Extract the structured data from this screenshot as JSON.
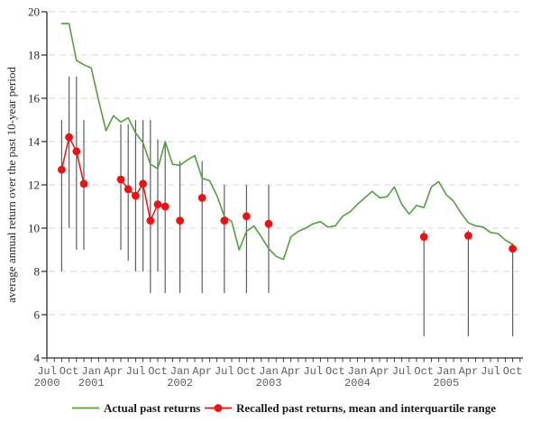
{
  "figure": {
    "title": "",
    "background": "#ffffff"
  },
  "chart_data": {
    "type": "line",
    "title": "",
    "xlabel": "",
    "ylabel": "average annual return over the past 10-year period",
    "ylim": [
      4,
      20
    ],
    "yticks": [
      4,
      6,
      8,
      10,
      12,
      14,
      16,
      18,
      20
    ],
    "grid": "horizontal dashed gridlines at every y tick from 6 to 20",
    "legend_position": "bottom-center",
    "colors": {
      "actual": "#52a03e",
      "recalled": "#ee1111",
      "error_bar": "#5f5f5f",
      "grid": "#d6d6d6",
      "axis": "#2b2b2b"
    },
    "x_axis": {
      "unit": "month",
      "first_tick": "2000-07",
      "last_tick": "2005-10",
      "minor_ticks": "every month"
    },
    "x_quarter_ticks": [
      {
        "m": 0,
        "label": "Jul"
      },
      {
        "m": 3,
        "label": "Oct"
      },
      {
        "m": 6,
        "label": "Jan"
      },
      {
        "m": 9,
        "label": "Apr"
      },
      {
        "m": 12,
        "label": "Jul"
      },
      {
        "m": 15,
        "label": "Oct"
      },
      {
        "m": 18,
        "label": "Jan"
      },
      {
        "m": 21,
        "label": "Apr"
      },
      {
        "m": 24,
        "label": "Jul"
      },
      {
        "m": 27,
        "label": "Oct"
      },
      {
        "m": 30,
        "label": "Jan"
      },
      {
        "m": 33,
        "label": "Apr"
      },
      {
        "m": 36,
        "label": "Jul"
      },
      {
        "m": 39,
        "label": "Oct"
      },
      {
        "m": 42,
        "label": "Jan"
      },
      {
        "m": 45,
        "label": "Apr"
      },
      {
        "m": 48,
        "label": "Jul"
      },
      {
        "m": 51,
        "label": "Oct"
      },
      {
        "m": 54,
        "label": "Jan"
      },
      {
        "m": 57,
        "label": "Apr"
      },
      {
        "m": 60,
        "label": "Jul"
      },
      {
        "m": 63,
        "label": "Oct"
      }
    ],
    "x_year_ticks": [
      {
        "m": 0,
        "label": "2000"
      },
      {
        "m": 6,
        "label": "2001"
      },
      {
        "m": 18,
        "label": "2002"
      },
      {
        "m": 30,
        "label": "2003"
      },
      {
        "m": 42,
        "label": "2004"
      },
      {
        "m": 54,
        "label": "2005"
      }
    ],
    "series": [
      {
        "name": "Actual past returns",
        "type": "line",
        "color": "#52a03e",
        "first_month": "2000-09",
        "monthly_values": [
          19.45,
          19.45,
          17.75,
          17.55,
          17.4,
          15.9,
          14.5,
          15.2,
          14.9,
          15.1,
          14.4,
          13.95,
          12.95,
          12.75,
          14.0,
          12.95,
          12.9,
          13.15,
          13.35,
          12.3,
          12.2,
          11.5,
          10.55,
          10.3,
          9.0,
          9.85,
          10.1,
          9.6,
          9.05,
          8.7,
          8.55,
          9.6,
          9.85,
          10.0,
          10.2,
          10.3,
          10.05,
          10.1,
          10.55,
          10.75,
          11.1,
          11.4,
          11.7,
          11.4,
          11.45,
          11.9,
          11.1,
          10.65,
          11.05,
          10.95,
          11.9,
          12.15,
          11.55,
          11.25,
          10.7,
          10.25,
          10.1,
          10.05,
          9.8,
          9.75,
          9.45,
          9.25
        ]
      },
      {
        "name": "Recalled past returns, mean and interquartile range",
        "type": "scatter-with-error-bars",
        "color": "#ee1111",
        "points": [
          {
            "month": "2000-09",
            "mean": 12.7,
            "q1": 8.0,
            "q3": 15.0,
            "segment": 0
          },
          {
            "month": "2000-10",
            "mean": 14.2,
            "q1": 10.0,
            "q3": 17.0,
            "segment": 0
          },
          {
            "month": "2000-11",
            "mean": 13.55,
            "q1": 9.0,
            "q3": 17.0,
            "segment": 0
          },
          {
            "month": "2000-12",
            "mean": 12.05,
            "q1": 9.0,
            "q3": 15.0,
            "segment": 0
          },
          {
            "month": "2001-05",
            "mean": 12.25,
            "q1": 9.0,
            "q3": 14.8,
            "segment": 1
          },
          {
            "month": "2001-06",
            "mean": 11.8,
            "q1": 8.5,
            "q3": 14.8,
            "segment": 1
          },
          {
            "month": "2001-07",
            "mean": 11.5,
            "q1": 8.0,
            "q3": 15.0,
            "segment": 1
          },
          {
            "month": "2001-08",
            "mean": 12.05,
            "q1": 8.0,
            "q3": 15.0,
            "segment": 1
          },
          {
            "month": "2001-09",
            "mean": 10.35,
            "q1": 7.0,
            "q3": 15.0,
            "segment": 1
          },
          {
            "month": "2001-10",
            "mean": 11.1,
            "q1": 8.0,
            "q3": 14.1,
            "segment": 1
          },
          {
            "month": "2001-11",
            "mean": 11.0,
            "q1": 7.0,
            "q3": 13.9,
            "segment": 1
          },
          {
            "month": "2002-01",
            "mean": 10.35,
            "q1": 7.0,
            "q3": 13.1,
            "segment": null
          },
          {
            "month": "2002-04",
            "mean": 11.4,
            "q1": 7.0,
            "q3": 13.1,
            "segment": null
          },
          {
            "month": "2002-07",
            "mean": 10.35,
            "q1": 7.0,
            "q3": 12.0,
            "segment": null
          },
          {
            "month": "2002-10",
            "mean": 10.55,
            "q1": 7.0,
            "q3": 12.0,
            "segment": null
          },
          {
            "month": "2003-01",
            "mean": 10.2,
            "q1": 7.0,
            "q3": 12.0,
            "segment": null
          },
          {
            "month": "2004-10",
            "mean": 9.6,
            "q1": 5.0,
            "q3": 9.9,
            "segment": null
          },
          {
            "month": "2005-04",
            "mean": 9.65,
            "q1": 5.0,
            "q3": 9.9,
            "segment": null
          },
          {
            "month": "2005-10",
            "mean": 9.05,
            "q1": 5.0,
            "q3": 9.3,
            "segment": null
          }
        ]
      }
    ]
  }
}
